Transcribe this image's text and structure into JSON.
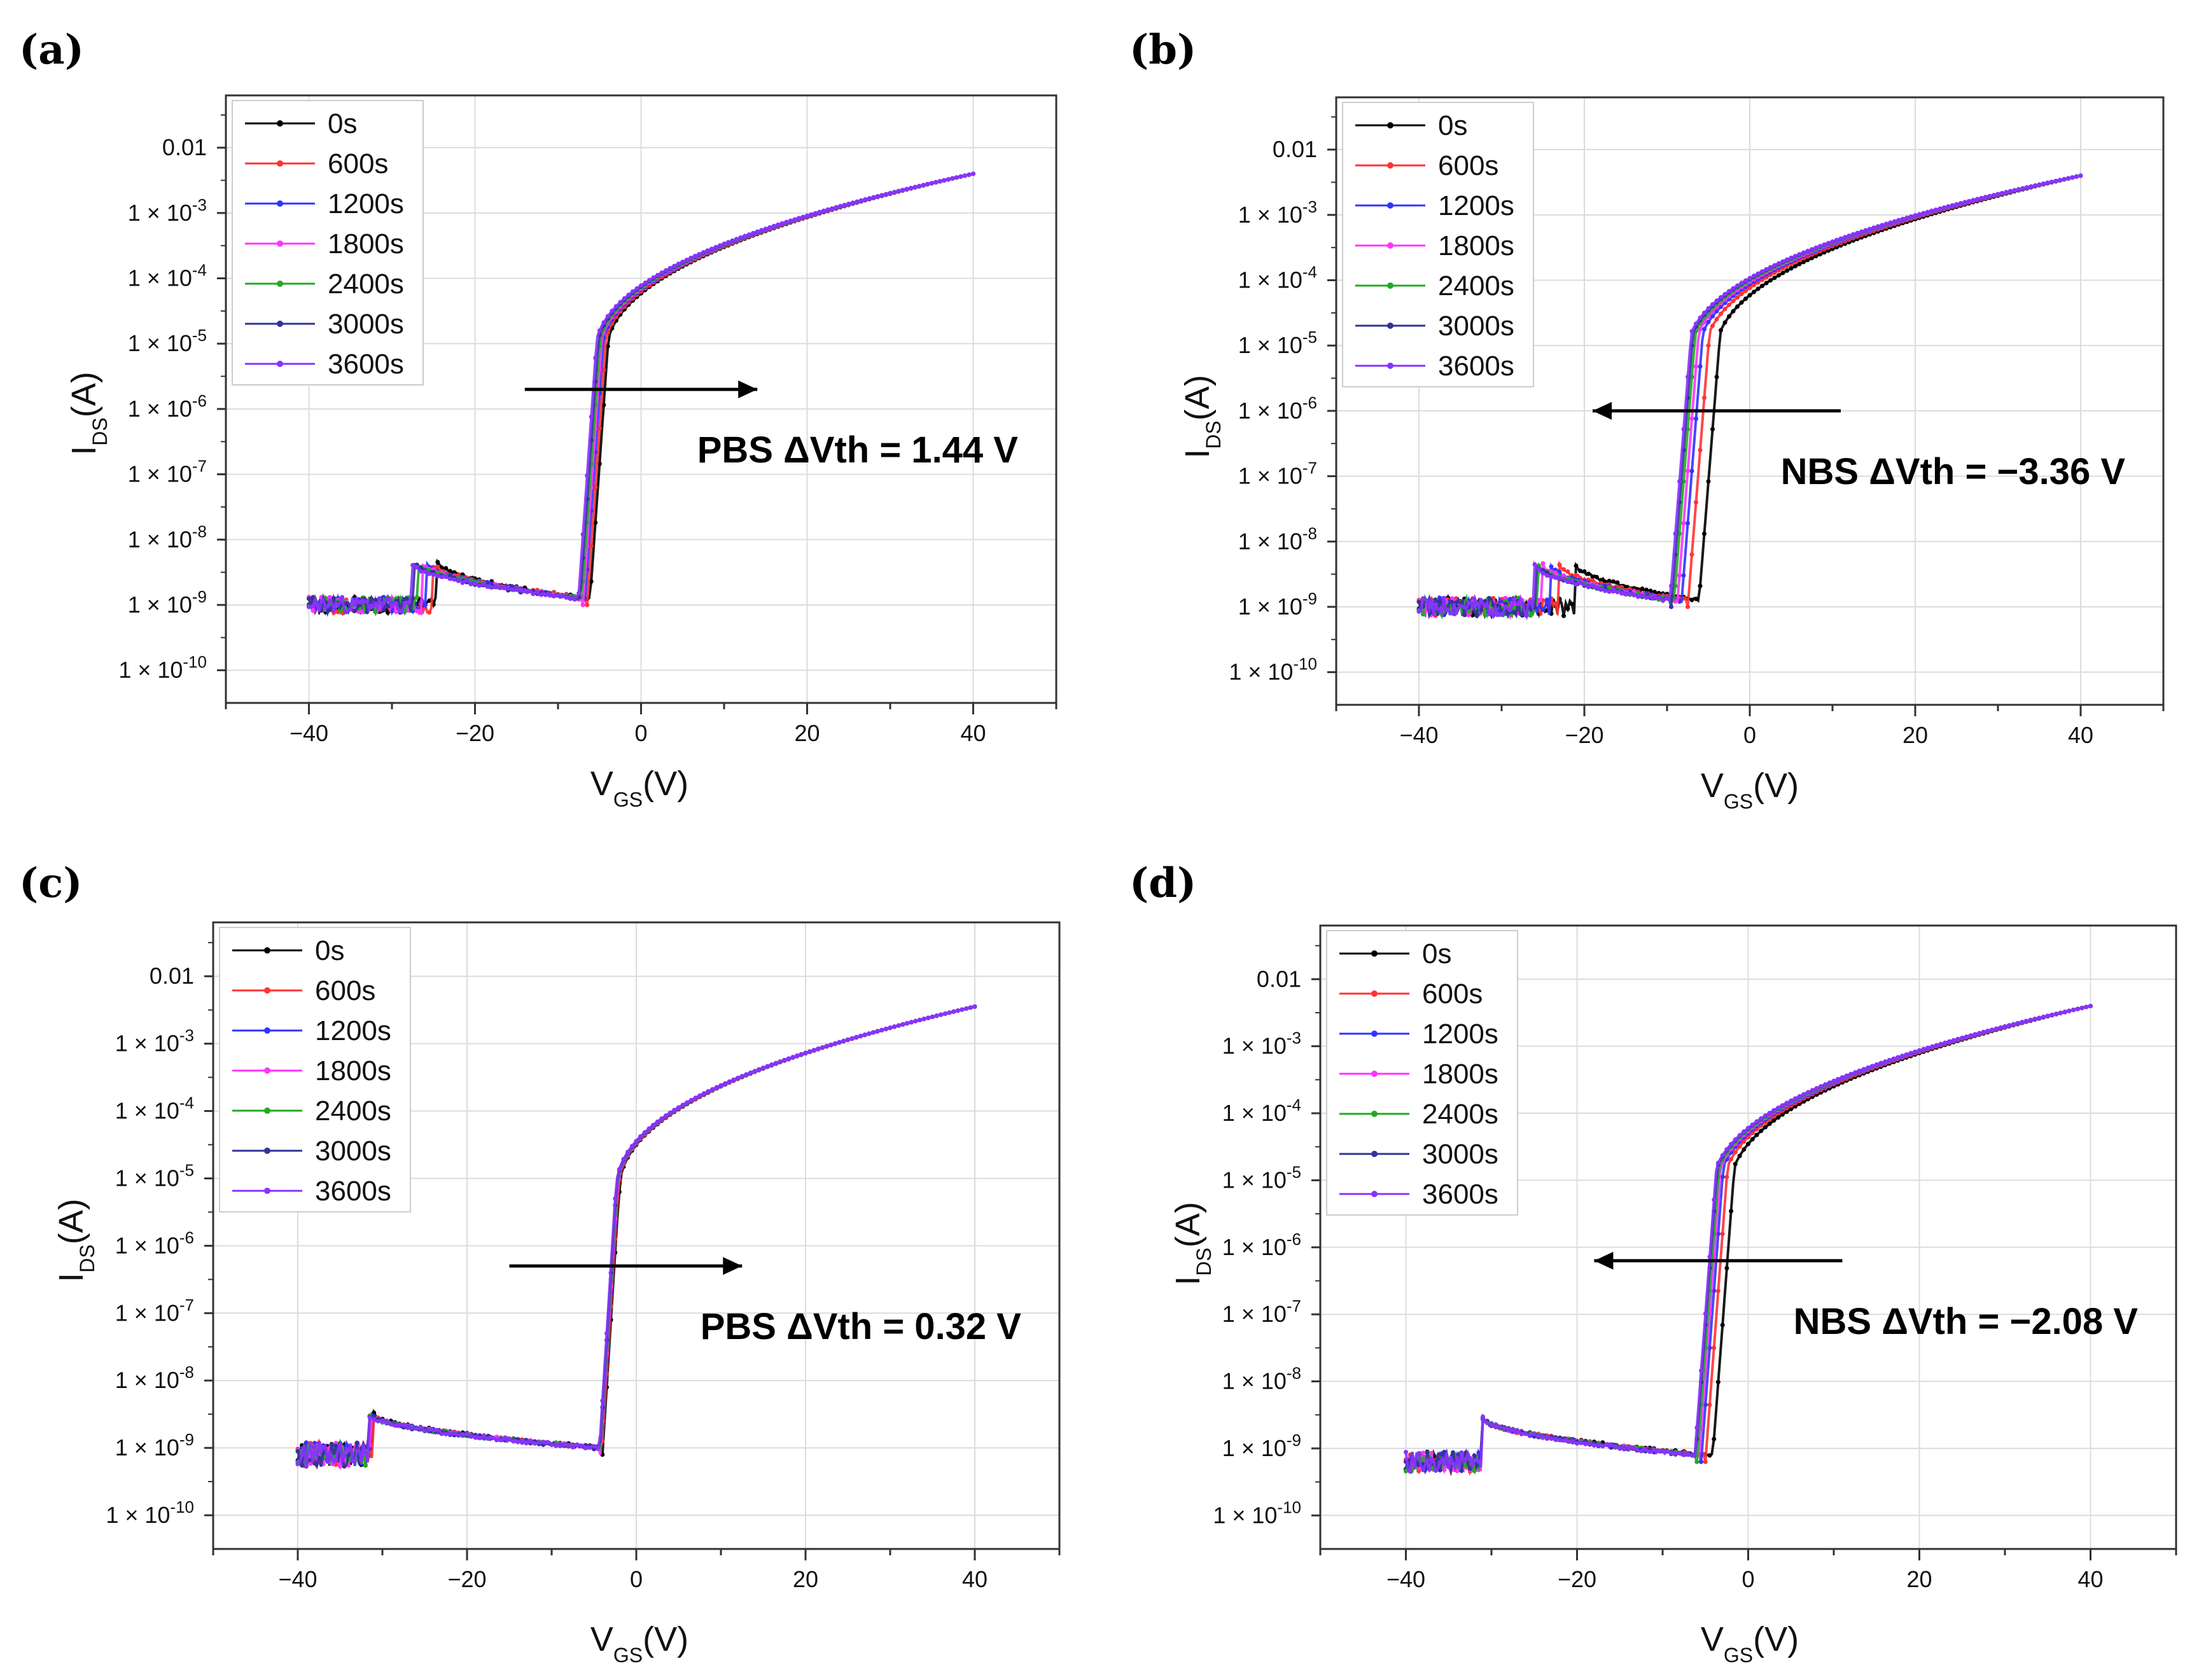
{
  "chart_data": [
    {
      "type": "line",
      "panel_label": "(a)",
      "xlabel_main": "V",
      "xlabel_sub": "GS",
      "xlabel_unit": "(V)",
      "ylabel_main": "I",
      "ylabel_sub": "DS",
      "ylabel_unit": "(A)",
      "xlim": [
        -50,
        50
      ],
      "ylim_log": [
        -10.5,
        -1.2
      ],
      "x_ticks": [
        -40,
        -20,
        0,
        20,
        40
      ],
      "x_tick_labels": [
        "−40",
        "−20",
        "0",
        "20",
        "40"
      ],
      "y_ticks": [
        {
          "exp": -2,
          "label": "0.01"
        },
        {
          "exp": -3,
          "label": "1 × 10",
          "sup": "-3"
        },
        {
          "exp": -4,
          "label": "1 × 10",
          "sup": "-4"
        },
        {
          "exp": -5,
          "label": "1 × 10",
          "sup": "-5"
        },
        {
          "exp": -6,
          "label": "1 × 10",
          "sup": "-6"
        },
        {
          "exp": -7,
          "label": "1 × 10",
          "sup": "-7"
        },
        {
          "exp": -8,
          "label": "1 × 10",
          "sup": "-8"
        },
        {
          "exp": -9,
          "label": "1 × 10",
          "sup": "-9"
        },
        {
          "exp": -10,
          "label": "1 × 10",
          "sup": "-10"
        }
      ],
      "grid": true,
      "legend_position": "top-left",
      "series": [
        {
          "name": "0s",
          "color": "#000000",
          "v_turn": -6.2
        },
        {
          "name": "600s",
          "color": "#ff3333",
          "v_turn": -6.5
        },
        {
          "name": "1200s",
          "color": "#3333ff",
          "v_turn": -6.8
        },
        {
          "name": "1800s",
          "color": "#ff33ff",
          "v_turn": -7.0
        },
        {
          "name": "2400s",
          "color": "#22aa22",
          "v_turn": -7.2
        },
        {
          "name": "3000s",
          "color": "#333399",
          "v_turn": -7.4
        },
        {
          "name": "3600s",
          "color": "#8833ff",
          "v_turn": -7.6
        }
      ],
      "curve_model": {
        "floor_log": -9.0,
        "hump_peak_log": -8.35,
        "sub_slope_per_V": 1.8,
        "sat_log_at_40V": -2.4,
        "off_noise": 0.12
      },
      "hump_voltage": [
        -24.5,
        -25.2,
        -25.8,
        -26.4,
        -26.9,
        -27.3,
        -27.7
      ],
      "annotation": {
        "text": "PBS ΔVth = 1.44 V",
        "arrow": "right",
        "arrow_from_V": -14,
        "arrow_to_V": 14,
        "arrow_level_log": -5.7
      }
    },
    {
      "type": "line",
      "panel_label": "(b)",
      "xlabel_main": "V",
      "xlabel_sub": "GS",
      "xlabel_unit": "(V)",
      "ylabel_main": "I",
      "ylabel_sub": "DS",
      "ylabel_unit": "(A)",
      "xlim": [
        -50,
        50
      ],
      "ylim_log": [
        -10.5,
        -1.2
      ],
      "x_ticks": [
        -40,
        -20,
        0,
        20,
        40
      ],
      "x_tick_labels": [
        "−40",
        "−20",
        "0",
        "20",
        "40"
      ],
      "y_ticks": [
        {
          "exp": -2,
          "label": "0.01"
        },
        {
          "exp": -3,
          "label": "1 × 10",
          "sup": "-3"
        },
        {
          "exp": -4,
          "label": "1 × 10",
          "sup": "-4"
        },
        {
          "exp": -5,
          "label": "1 × 10",
          "sup": "-5"
        },
        {
          "exp": -6,
          "label": "1 × 10",
          "sup": "-6"
        },
        {
          "exp": -7,
          "label": "1 × 10",
          "sup": "-7"
        },
        {
          "exp": -8,
          "label": "1 × 10",
          "sup": "-8"
        },
        {
          "exp": -9,
          "label": "1 × 10",
          "sup": "-9"
        },
        {
          "exp": -10,
          "label": "1 × 10",
          "sup": "-10"
        }
      ],
      "grid": true,
      "legend_position": "top-left",
      "series": [
        {
          "name": "0s",
          "color": "#000000",
          "v_turn": -6.2
        },
        {
          "name": "600s",
          "color": "#ff3333",
          "v_turn": -7.5
        },
        {
          "name": "1200s",
          "color": "#3333ff",
          "v_turn": -8.3
        },
        {
          "name": "1800s",
          "color": "#ff33ff",
          "v_turn": -8.8
        },
        {
          "name": "2400s",
          "color": "#22aa22",
          "v_turn": -9.2
        },
        {
          "name": "3000s",
          "color": "#333399",
          "v_turn": -9.5
        },
        {
          "name": "3600s",
          "color": "#8833ff",
          "v_turn": -9.7
        }
      ],
      "curve_model": {
        "floor_log": -9.0,
        "hump_peak_log": -8.35,
        "sub_slope_per_V": 1.6,
        "sat_log_at_40V": -2.4,
        "off_noise": 0.14
      },
      "hump_voltage": [
        -21.0,
        -23.0,
        -24.2,
        -25.0,
        -25.5,
        -25.8,
        -26.0
      ],
      "annotation": {
        "text": "NBS ΔVth = −3.36 V",
        "arrow": "left",
        "arrow_from_V": 11,
        "arrow_to_V": -19,
        "arrow_level_log": -6.0
      }
    },
    {
      "type": "line",
      "panel_label": "(c)",
      "xlabel_main": "V",
      "xlabel_sub": "GS",
      "xlabel_unit": "(V)",
      "ylabel_main": "I",
      "ylabel_sub": "DS",
      "ylabel_unit": "(A)",
      "xlim": [
        -50,
        50
      ],
      "ylim_log": [
        -10.5,
        -1.2
      ],
      "x_ticks": [
        -40,
        -20,
        0,
        20,
        40
      ],
      "x_tick_labels": [
        "−40",
        "−20",
        "0",
        "20",
        "40"
      ],
      "y_ticks": [
        {
          "exp": -2,
          "label": "0.01"
        },
        {
          "exp": -3,
          "label": "1 × 10",
          "sup": "-3"
        },
        {
          "exp": -4,
          "label": "1 × 10",
          "sup": "-4"
        },
        {
          "exp": -5,
          "label": "1 × 10",
          "sup": "-5"
        },
        {
          "exp": -6,
          "label": "1 × 10",
          "sup": "-6"
        },
        {
          "exp": -7,
          "label": "1 × 10",
          "sup": "-7"
        },
        {
          "exp": -8,
          "label": "1 × 10",
          "sup": "-8"
        },
        {
          "exp": -9,
          "label": "1 × 10",
          "sup": "-9"
        },
        {
          "exp": -10,
          "label": "1 × 10",
          "sup": "-10"
        }
      ],
      "grid": true,
      "legend_position": "top-left",
      "series": [
        {
          "name": "0s",
          "color": "#000000",
          "v_turn": -4.0
        },
        {
          "name": "600s",
          "color": "#ff3333",
          "v_turn": -4.1
        },
        {
          "name": "1200s",
          "color": "#3333ff",
          "v_turn": -4.2
        },
        {
          "name": "1800s",
          "color": "#ff33ff",
          "v_turn": -4.25
        },
        {
          "name": "2400s",
          "color": "#22aa22",
          "v_turn": -4.3
        },
        {
          "name": "3000s",
          "color": "#333399",
          "v_turn": -4.35
        },
        {
          "name": "3600s",
          "color": "#8833ff",
          "v_turn": -4.4
        }
      ],
      "curve_model": {
        "floor_log": -9.1,
        "hump_peak_log": -8.5,
        "sub_slope_per_V": 2.0,
        "sat_log_at_40V": -2.45,
        "off_noise": 0.18
      },
      "hump_voltage": [
        -31.0,
        -31.2,
        -31.3,
        -31.4,
        -31.5,
        -31.6,
        -31.7
      ],
      "annotation": {
        "text": "PBS ΔVth = 0.32 V",
        "arrow": "right",
        "arrow_from_V": -15,
        "arrow_to_V": 12.5,
        "arrow_level_log": -6.3
      }
    },
    {
      "type": "line",
      "panel_label": "(d)",
      "xlabel_main": "V",
      "xlabel_sub": "GS",
      "xlabel_unit": "(V)",
      "ylabel_main": "I",
      "ylabel_sub": "DS",
      "ylabel_unit": "(A)",
      "xlim": [
        -50,
        50
      ],
      "ylim_log": [
        -10.5,
        -1.2
      ],
      "x_ticks": [
        -40,
        -20,
        0,
        20,
        40
      ],
      "x_tick_labels": [
        "−40",
        "−20",
        "0",
        "20",
        "40"
      ],
      "y_ticks": [
        {
          "exp": -2,
          "label": "0.01"
        },
        {
          "exp": -3,
          "label": "1 × 10",
          "sup": "-3"
        },
        {
          "exp": -4,
          "label": "1 × 10",
          "sup": "-4"
        },
        {
          "exp": -5,
          "label": "1 × 10",
          "sup": "-5"
        },
        {
          "exp": -6,
          "label": "1 × 10",
          "sup": "-6"
        },
        {
          "exp": -7,
          "label": "1 × 10",
          "sup": "-7"
        },
        {
          "exp": -8,
          "label": "1 × 10",
          "sup": "-8"
        },
        {
          "exp": -9,
          "label": "1 × 10",
          "sup": "-9"
        },
        {
          "exp": -10,
          "label": "1 × 10",
          "sup": "-10"
        }
      ],
      "grid": true,
      "legend_position": "top-left",
      "series": [
        {
          "name": "0s",
          "color": "#000000",
          "v_turn": -4.2
        },
        {
          "name": "600s",
          "color": "#ff3333",
          "v_turn": -5.0
        },
        {
          "name": "1200s",
          "color": "#3333ff",
          "v_turn": -5.5
        },
        {
          "name": "1800s",
          "color": "#ff33ff",
          "v_turn": -5.8
        },
        {
          "name": "2400s",
          "color": "#22aa22",
          "v_turn": -6.0
        },
        {
          "name": "3000s",
          "color": "#333399",
          "v_turn": -6.2
        },
        {
          "name": "3600s",
          "color": "#8833ff",
          "v_turn": -6.3
        }
      ],
      "curve_model": {
        "floor_log": -9.2,
        "hump_peak_log": -8.55,
        "sub_slope_per_V": 1.7,
        "sat_log_at_40V": -2.4,
        "off_noise": 0.15
      },
      "hump_voltage": [
        -31.0,
        -31.0,
        -31.0,
        -31.0,
        -31.0,
        -31.0,
        -31.0
      ],
      "annotation": {
        "text": "NBS ΔVth = −2.08 V",
        "arrow": "left",
        "arrow_from_V": 11,
        "arrow_to_V": -18,
        "arrow_level_log": -6.2
      }
    }
  ]
}
